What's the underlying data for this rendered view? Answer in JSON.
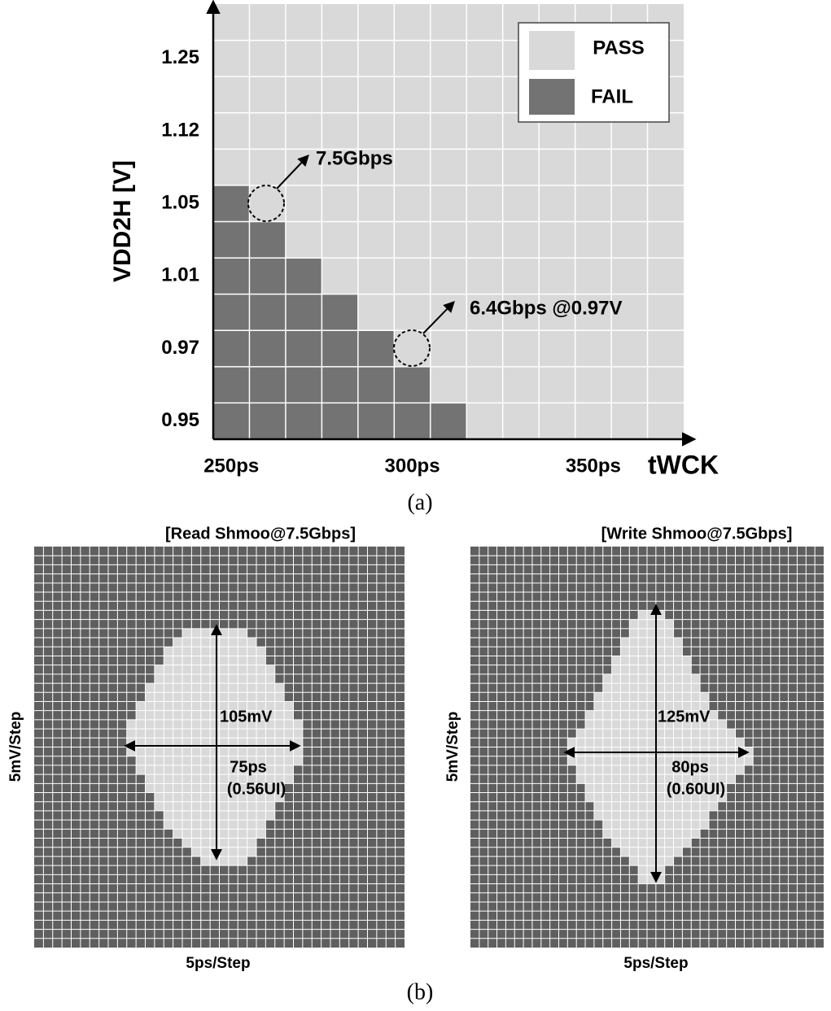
{
  "panel_a": {
    "caption": "(a)",
    "y_label": "VDD2H [V]",
    "x_label": "tWCK",
    "columns": 13,
    "rows": 12,
    "fail_cells_per_row": [
      7,
      6,
      5,
      4,
      3,
      2,
      1,
      0,
      0,
      0,
      0,
      0
    ],
    "y_tick_labels": [
      "0.95",
      "0.97",
      "1.01",
      "1.05",
      "1.12",
      "1.25"
    ],
    "y_tick_rows": [
      0,
      2,
      4,
      6,
      8,
      10
    ],
    "x_tick_labels": [
      "250ps",
      "300ps",
      "350ps"
    ],
    "x_tick_columns": [
      0,
      5,
      10
    ],
    "legend": [
      "PASS",
      "FAIL"
    ],
    "pass_color": "#d9d9d9",
    "fail_color": "#737373",
    "annotations": [
      "7.5Gbps",
      "6.4Gbps @0.97V"
    ]
  },
  "panel_b": {
    "caption": "(b)",
    "pass_color": "#d9d9d9",
    "fail_color": "#5f5f5f",
    "plots": [
      {
        "title": "[Read Shmoo@7.5Gbps]",
        "y_label": "5mV/Step",
        "x_label": "5ps/Step",
        "columns": 40,
        "rows": 44,
        "pass_start": [
          null,
          null,
          null,
          null,
          null,
          null,
          null,
          null,
          null,
          16,
          15,
          14,
          14,
          13,
          13,
          12,
          12,
          11,
          11,
          10,
          10,
          10,
          10,
          11,
          11,
          12,
          12,
          13,
          13,
          14,
          14,
          15,
          16,
          17,
          18,
          null,
          null,
          null,
          null,
          null,
          null,
          null,
          null,
          null
        ],
        "pass_end": [
          null,
          null,
          null,
          null,
          null,
          null,
          null,
          null,
          null,
          22,
          23,
          24,
          24,
          25,
          25,
          26,
          26,
          27,
          27,
          28,
          28,
          28,
          28,
          28,
          27,
          27,
          26,
          26,
          25,
          25,
          24,
          24,
          23,
          23,
          22,
          null,
          null,
          null,
          null,
          null,
          null,
          null,
          null,
          null
        ],
        "vertical_label": "105mV",
        "horizontal_label": "75ps",
        "horizontal_ui": "(0.56UI)"
      },
      {
        "title": "[Write Shmoo@7.5Gbps]",
        "y_label": "5mV/Step",
        "x_label": "5ps/Step",
        "columns": 40,
        "rows": 44,
        "pass_start": [
          null,
          null,
          null,
          null,
          null,
          null,
          null,
          19,
          18,
          18,
          17,
          17,
          16,
          16,
          15,
          15,
          14,
          14,
          13,
          13,
          12,
          11,
          11,
          11,
          12,
          12,
          13,
          13,
          14,
          14,
          15,
          15,
          16,
          17,
          18,
          19,
          19,
          null,
          null,
          null,
          null,
          null,
          null,
          null
        ],
        "pass_end": [
          null,
          null,
          null,
          null,
          null,
          null,
          null,
          21,
          22,
          22,
          23,
          23,
          24,
          24,
          25,
          25,
          26,
          26,
          27,
          28,
          29,
          30,
          31,
          31,
          30,
          29,
          28,
          28,
          27,
          26,
          26,
          25,
          24,
          23,
          22,
          21,
          21,
          null,
          null,
          null,
          null,
          null,
          null,
          null
        ],
        "vertical_label": "125mV",
        "horizontal_label": "80ps",
        "horizontal_ui": "(0.60UI)"
      }
    ]
  }
}
